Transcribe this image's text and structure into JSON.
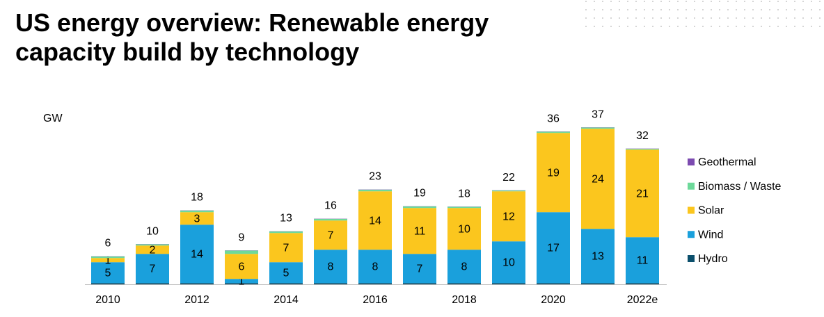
{
  "chart_data": {
    "type": "stacked-bar",
    "title": "US energy overview: Renewable energy capacity build by technology",
    "y_label": "GW",
    "categories": [
      "2010",
      null,
      "2012",
      null,
      "2014",
      null,
      "2016",
      null,
      "2018",
      null,
      "2020",
      null,
      "2022e"
    ],
    "series": [
      {
        "name": "Hydro",
        "color": "#0b4f6c",
        "show_labels": false,
        "values": [
          0.3,
          0.3,
          0.3,
          0.3,
          0.3,
          0.3,
          0.3,
          0.3,
          0.3,
          0.3,
          0.3,
          0.3,
          0.3
        ]
      },
      {
        "name": "Wind",
        "color": "#1aa0dc",
        "show_labels": true,
        "values": [
          5,
          7,
          14,
          1,
          5,
          8,
          8,
          7,
          8,
          10,
          17,
          13,
          11
        ]
      },
      {
        "name": "Solar",
        "color": "#fbc61e",
        "show_labels": true,
        "values": [
          1,
          2,
          3,
          6,
          7,
          7,
          14,
          11,
          10,
          12,
          19,
          24,
          21
        ]
      },
      {
        "name": "Biomass / Waste",
        "color": "#6dd99a",
        "show_labels": false,
        "values": [
          0.4,
          0.3,
          0.4,
          0.8,
          0.4,
          0.4,
          0.4,
          0.4,
          0.3,
          0.2,
          0.3,
          0.3,
          0.2
        ]
      },
      {
        "name": "Geothermal",
        "color": "#7c4bb0",
        "show_labels": false,
        "values": [
          0.05,
          0.05,
          0.05,
          0.05,
          0.05,
          0.05,
          0.05,
          0.05,
          0.05,
          0.05,
          0.05,
          0.05,
          0.05
        ]
      }
    ],
    "totals": [
      6,
      10,
      18,
      9,
      13,
      16,
      23,
      19,
      18,
      22,
      36,
      37,
      32
    ],
    "ylim": [
      0,
      40
    ],
    "legend": "right"
  }
}
